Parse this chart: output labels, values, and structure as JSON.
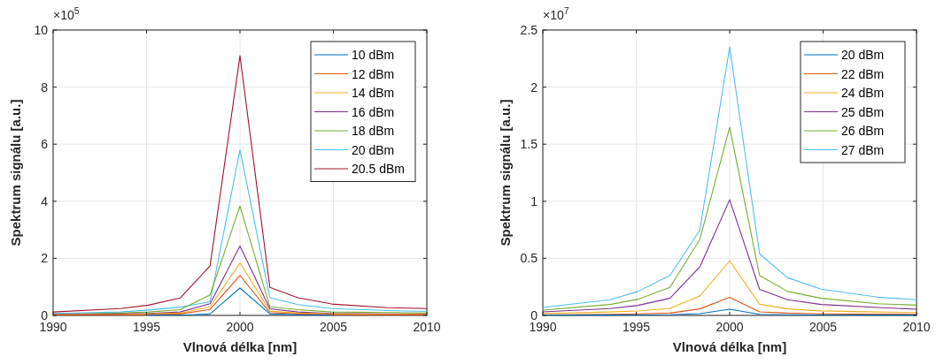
{
  "chart_data": [
    {
      "type": "line",
      "xlabel": "Vlnová délka [nm]",
      "ylabel": "Spektrum signálu [a.u.]",
      "annotations": [
        "×10$^{5}$"
      ],
      "x": [
        1990,
        1993.6,
        1995.1,
        1996.8,
        1998.4,
        2000,
        2001.6,
        2003.1,
        2004.9,
        2007.9,
        2010
      ],
      "xlim": [
        1990,
        2010
      ],
      "xticks": [
        1990,
        1995,
        2000,
        2005,
        2010
      ],
      "ylim": [
        0,
        10
      ],
      "yticks": [
        0,
        2,
        4,
        6,
        8,
        10
      ],
      "grid": true,
      "legend": "top right",
      "line_style": "solid",
      "marker": "none",
      "series": [
        {
          "name": "10 dBm",
          "color": "#0072bd",
          "values": [
            null,
            null,
            0.01,
            0.01,
            0.05,
            0.96,
            0.05,
            0.02,
            0.01,
            null,
            null
          ]
        },
        {
          "name": "12 dBm",
          "color": "#d95319",
          "values": [
            0.01,
            0.02,
            0.03,
            0.05,
            0.21,
            1.4,
            0.1,
            0.05,
            0.03,
            0.02,
            0.02
          ]
        },
        {
          "name": "14 dBm",
          "color": "#edb120",
          "values": [
            0.02,
            0.03,
            0.05,
            0.08,
            0.3,
            1.84,
            0.15,
            0.08,
            0.05,
            0.04,
            0.03
          ]
        },
        {
          "name": "16 dBm",
          "color": "#7e2f8e",
          "values": [
            0.03,
            0.05,
            0.07,
            0.12,
            0.41,
            2.43,
            0.23,
            0.12,
            0.07,
            0.05,
            0.04
          ]
        },
        {
          "name": "18 dBm",
          "color": "#77ac30",
          "values": [
            0.04,
            0.08,
            0.12,
            0.2,
            0.72,
            3.83,
            0.3,
            0.2,
            0.12,
            0.1,
            0.08
          ]
        },
        {
          "name": "20 dBm",
          "color": "#4dbeee",
          "values": [
            0.07,
            0.12,
            0.19,
            0.29,
            0.48,
            5.8,
            0.62,
            0.38,
            0.24,
            0.17,
            0.14
          ]
        },
        {
          "name": "20.5 dBm",
          "color": "#a2142f",
          "values": [
            0.12,
            0.24,
            0.36,
            0.61,
            1.74,
            9.1,
            0.98,
            0.62,
            0.4,
            0.27,
            0.24
          ]
        }
      ]
    },
    {
      "type": "line",
      "xlabel": "Vlnová délka [nm]",
      "ylabel": "Spektrum signálu [a.u.]",
      "annotations": [
        "×10$^{7}$"
      ],
      "x": [
        1990,
        1993.6,
        1995.1,
        1996.8,
        1998.4,
        2000,
        2001.6,
        2003.1,
        2004.9,
        2007.9,
        2010
      ],
      "xlim": [
        1990,
        2010
      ],
      "xticks": [
        1990,
        1995,
        2000,
        2005,
        2010
      ],
      "ylim": [
        0,
        2.5
      ],
      "yticks": [
        0,
        0.5,
        1,
        1.5,
        2,
        2.5
      ],
      "grid": true,
      "legend": "top right",
      "line_style": "solid",
      "marker": "none",
      "series": [
        {
          "name": "20 dBm",
          "color": "#0072bd",
          "values": [
            0.002,
            0.003,
            0.004,
            0.006,
            0.015,
            0.054,
            0.01,
            0.006,
            0.004,
            0.003,
            0.003
          ]
        },
        {
          "name": "22 dBm",
          "color": "#d95319",
          "values": [
            0.006,
            0.01,
            0.013,
            0.02,
            0.057,
            0.158,
            0.031,
            0.02,
            0.014,
            0.011,
            0.01
          ]
        },
        {
          "name": "24 dBm",
          "color": "#edb120",
          "values": [
            0.017,
            0.03,
            0.039,
            0.062,
            0.17,
            0.478,
            0.098,
            0.057,
            0.04,
            0.03,
            0.025
          ]
        },
        {
          "name": "25 dBm",
          "color": "#7e2f8e",
          "values": [
            0.031,
            0.06,
            0.088,
            0.15,
            0.424,
            1.013,
            0.228,
            0.137,
            0.096,
            0.07,
            0.054
          ]
        },
        {
          "name": "26 dBm",
          "color": "#77ac30",
          "values": [
            0.047,
            0.096,
            0.142,
            0.245,
            0.665,
            1.647,
            0.35,
            0.21,
            0.15,
            0.103,
            0.09
          ]
        },
        {
          "name": "27 dBm",
          "color": "#4dbeee",
          "values": [
            0.07,
            0.137,
            0.21,
            0.35,
            0.745,
            2.35,
            0.54,
            0.33,
            0.23,
            0.16,
            0.137
          ]
        }
      ]
    }
  ]
}
